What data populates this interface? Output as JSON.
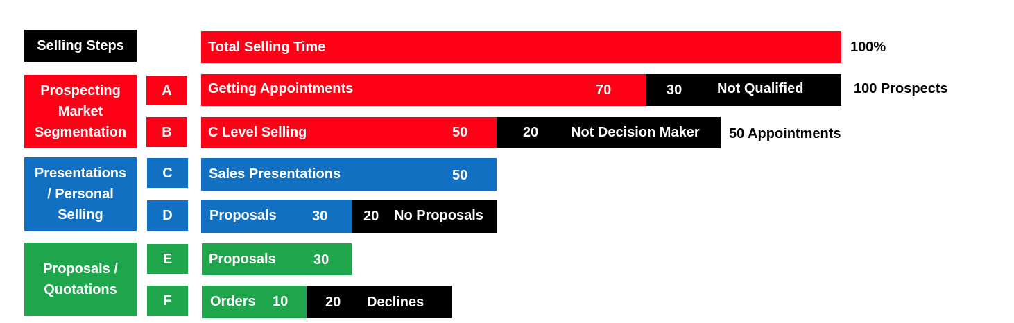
{
  "header": {
    "label": "Selling Steps"
  },
  "stages": {
    "prospecting": "Prospecting\nMarket\nSegmentation",
    "presentations": "Presentations\n/ Personal\nSelling",
    "proposals": "Proposals /\nQuotations"
  },
  "steps": [
    "A",
    "B",
    "C",
    "D",
    "E",
    "F"
  ],
  "bars": {
    "total": {
      "label": "Total Selling Time",
      "side": "100%"
    },
    "a": {
      "label": "Getting Appointments",
      "value": "70",
      "neg_value": "30",
      "neg_label": "Not Qualified",
      "side": "100 Prospects"
    },
    "b": {
      "label": "C Level Selling",
      "value": "50",
      "neg_value": "20",
      "neg_label": "Not Decision Maker",
      "side": "50 Appointments"
    },
    "c": {
      "label": "Sales Presentations",
      "value": "50"
    },
    "d": {
      "label": "Proposals",
      "value": "30",
      "neg_value": "20",
      "neg_label": "No Proposals"
    },
    "e": {
      "label": "Proposals",
      "value": "30"
    },
    "f": {
      "label": "Orders",
      "value": "10",
      "neg_value": "20",
      "neg_label": "Declines"
    }
  },
  "colors": {
    "red": "#ff0016",
    "blue": "#1270c2",
    "green": "#1fa64d",
    "black": "#000000"
  }
}
